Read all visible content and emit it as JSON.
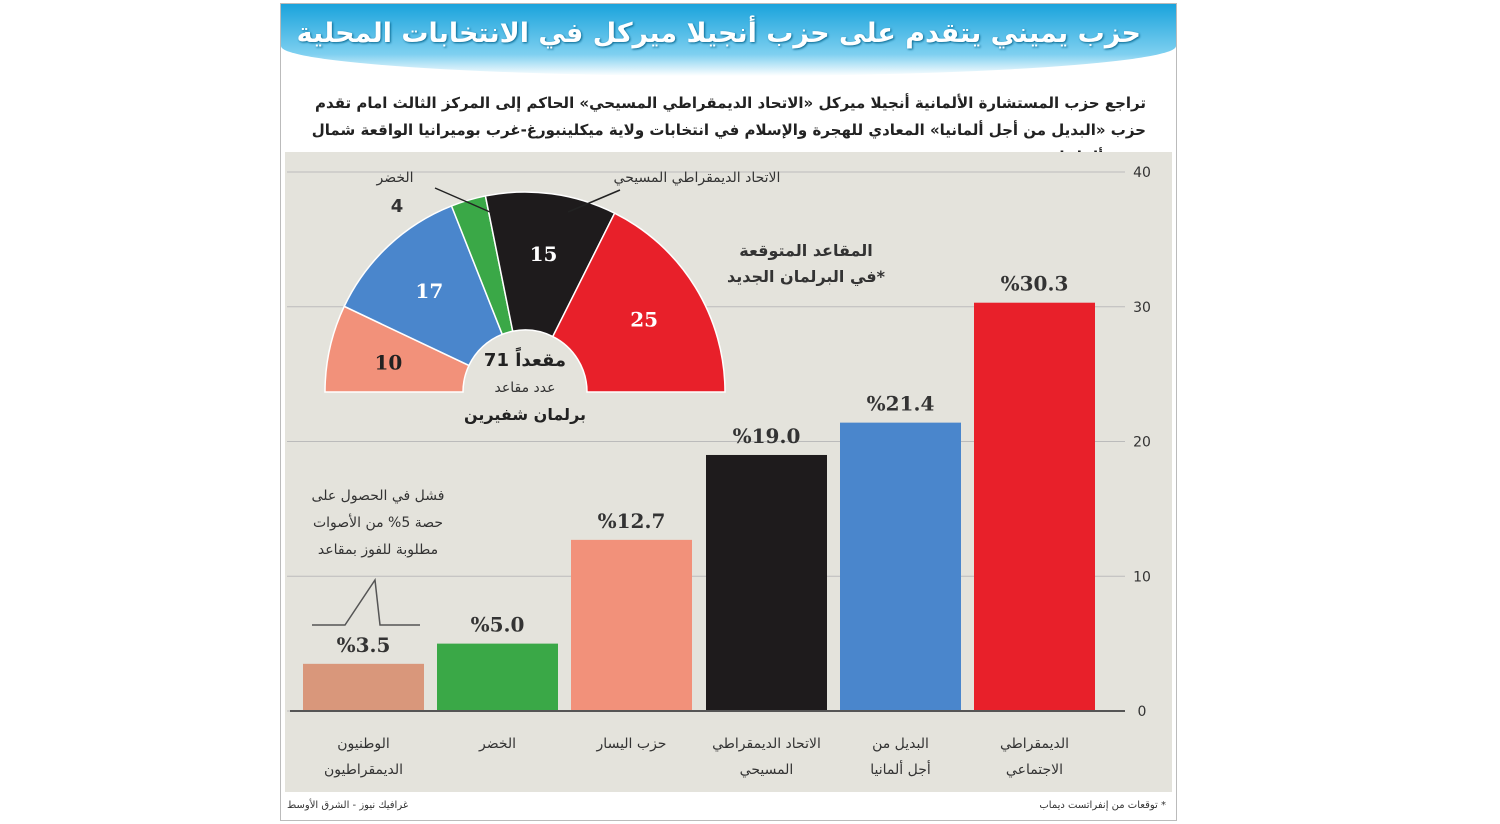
{
  "title": "حزب يميني يتقدم على حزب أنجيلا ميركل في الانتخابات المحلية",
  "subtitle": "تراجع حزب المستشارة الألمانية أنجيلا ميركل «الاتحاد الديمقراطي المسيحي» الحاكم إلى المركز الثالث امام تقدم حزب «البديل من أجل ألمانيا» المعادي للهجرة والإسلام في انتخابات ولاية ميكلينبورغ-غرب بوميرانيا الواقعة شمال شرق ألمانيا",
  "footnote": "* توقعات من إنفراتست ديماب",
  "credit": "غرافيك نيوز - الشرق الأوسط",
  "chart_data": [
    {
      "type": "bar",
      "ylim": [
        0,
        40
      ],
      "yticks": [
        0,
        10,
        20,
        30,
        40
      ],
      "grid": true,
      "categories": [
        "الوطنيون الديمقراطيون",
        "الخضر",
        "حزب اليسار",
        "الاتحاد الديمقراطي المسيحي",
        "البديل من أجل ألمانيا",
        "الديمقراطي الاجتماعي"
      ],
      "values": [
        3.5,
        5.0,
        12.7,
        19.0,
        21.4,
        30.3
      ],
      "value_labels": [
        "%3.5",
        "%5.0",
        "%12.7",
        "%19.0",
        "%21.4",
        "%30.3"
      ],
      "colors": [
        "#d9977b",
        "#3aa847",
        "#f2917a",
        "#1e1b1c",
        "#4a86cc",
        "#e8202a"
      ],
      "threshold_note": "فشل في الحصول على حصة 5% من الأصوات مطلوبة للفوز بمقاعد"
    },
    {
      "type": "pie",
      "subtype": "semicircle",
      "title": "المقاعد المتوقعة في البرلمان الجديد*",
      "center_total": "71 مقعداً",
      "center_label": "عدد مقاعد",
      "center_sub": "برلمان شفيرين",
      "slices": [
        {
          "label": "اليسار",
          "value": 10,
          "color": "#f2917a"
        },
        {
          "label": "البديل من أجل ألمانيا",
          "value": 17,
          "color": "#4a86cc"
        },
        {
          "label": "الخضر",
          "value": 4,
          "color": "#3aa847"
        },
        {
          "label": "الاتحاد الديمقراطي المسيحي",
          "value": 15,
          "color": "#1e1b1c"
        },
        {
          "label": "الديمقراطي الاجتماعي",
          "value": 25,
          "color": "#e8202a"
        }
      ]
    }
  ]
}
